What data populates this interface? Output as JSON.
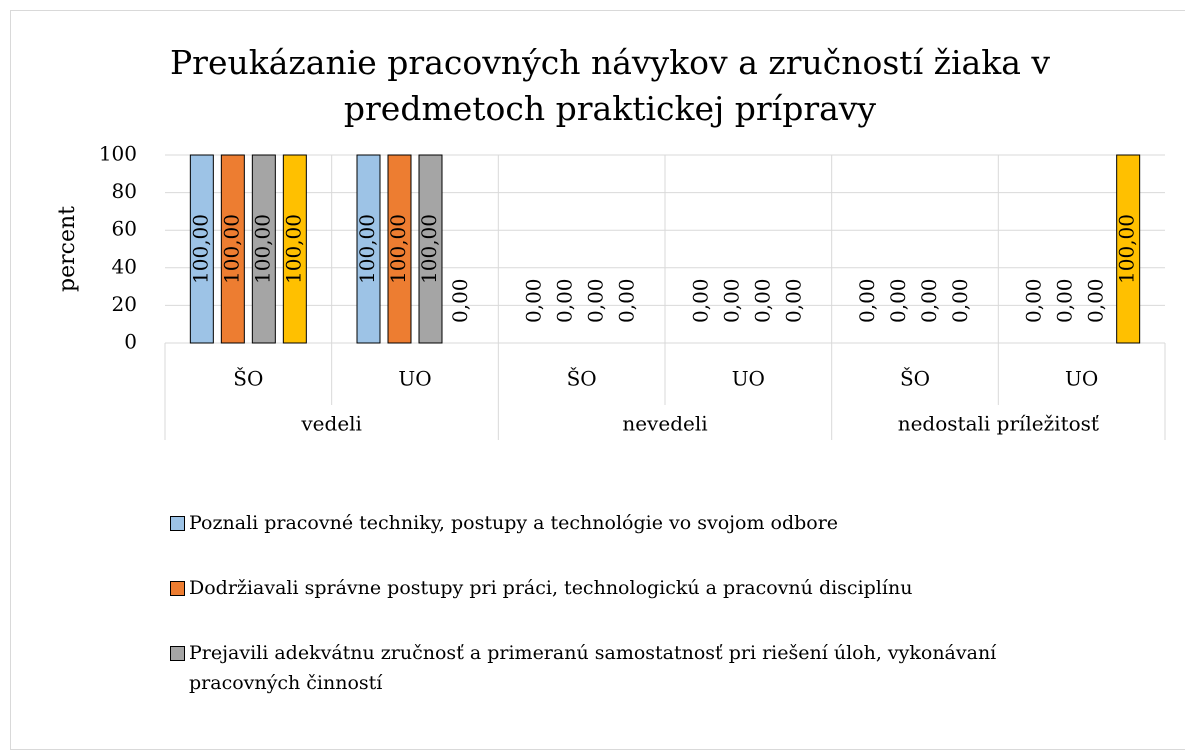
{
  "chart_data": {
    "type": "bar",
    "title": "Preukázanie pracovných návykov a zručností žiaka v predmetoch praktickej prípravy",
    "y_label": "percent",
    "categories": [
      "ŠO",
      "UO",
      "ŠO",
      "UO",
      "ŠO",
      "UO"
    ],
    "group_labels": [
      "vedeli",
      "nevedeli",
      "nedostali príležitosť"
    ],
    "series": [
      {
        "name": "Poznali pracovné techniky, postupy a technológie vo svojom odbore",
        "color": "#9dc3e6",
        "values": [
          100,
          100,
          0,
          0,
          0,
          0
        ],
        "value_labels": [
          "100,00",
          "100,00",
          "0,00",
          "0,00",
          "0,00",
          "0,00"
        ]
      },
      {
        "name": "Dodržiavali správne postupy pri práci, technologickú a pracovnú disciplínu",
        "color": "#ed7d31",
        "values": [
          100,
          100,
          0,
          0,
          0,
          0
        ],
        "value_labels": [
          "100,00",
          "100,00",
          "0,00",
          "0,00",
          "0,00",
          "0,00"
        ]
      },
      {
        "name": "Prejavili adekvátnu zručnosť a primeranú samostatnosť pri riešení úloh, vykonávaní pracovných činností",
        "color": "#a5a5a5",
        "values": [
          100,
          100,
          0,
          0,
          0,
          0
        ],
        "value_labels": [
          "100,00",
          "100,00",
          "0,00",
          "0,00",
          "0,00",
          "0,00"
        ]
      },
      {
        "color": "#ffc000",
        "values": [
          100,
          0,
          0,
          0,
          0,
          100
        ],
        "value_labels": [
          "100,00",
          "0,00",
          "0,00",
          "0,00",
          "0,00",
          "100,00"
        ]
      }
    ],
    "ylim": [
      0,
      100
    ],
    "yticks": [
      0,
      20,
      40,
      60,
      80,
      100
    ],
    "grid": true
  }
}
